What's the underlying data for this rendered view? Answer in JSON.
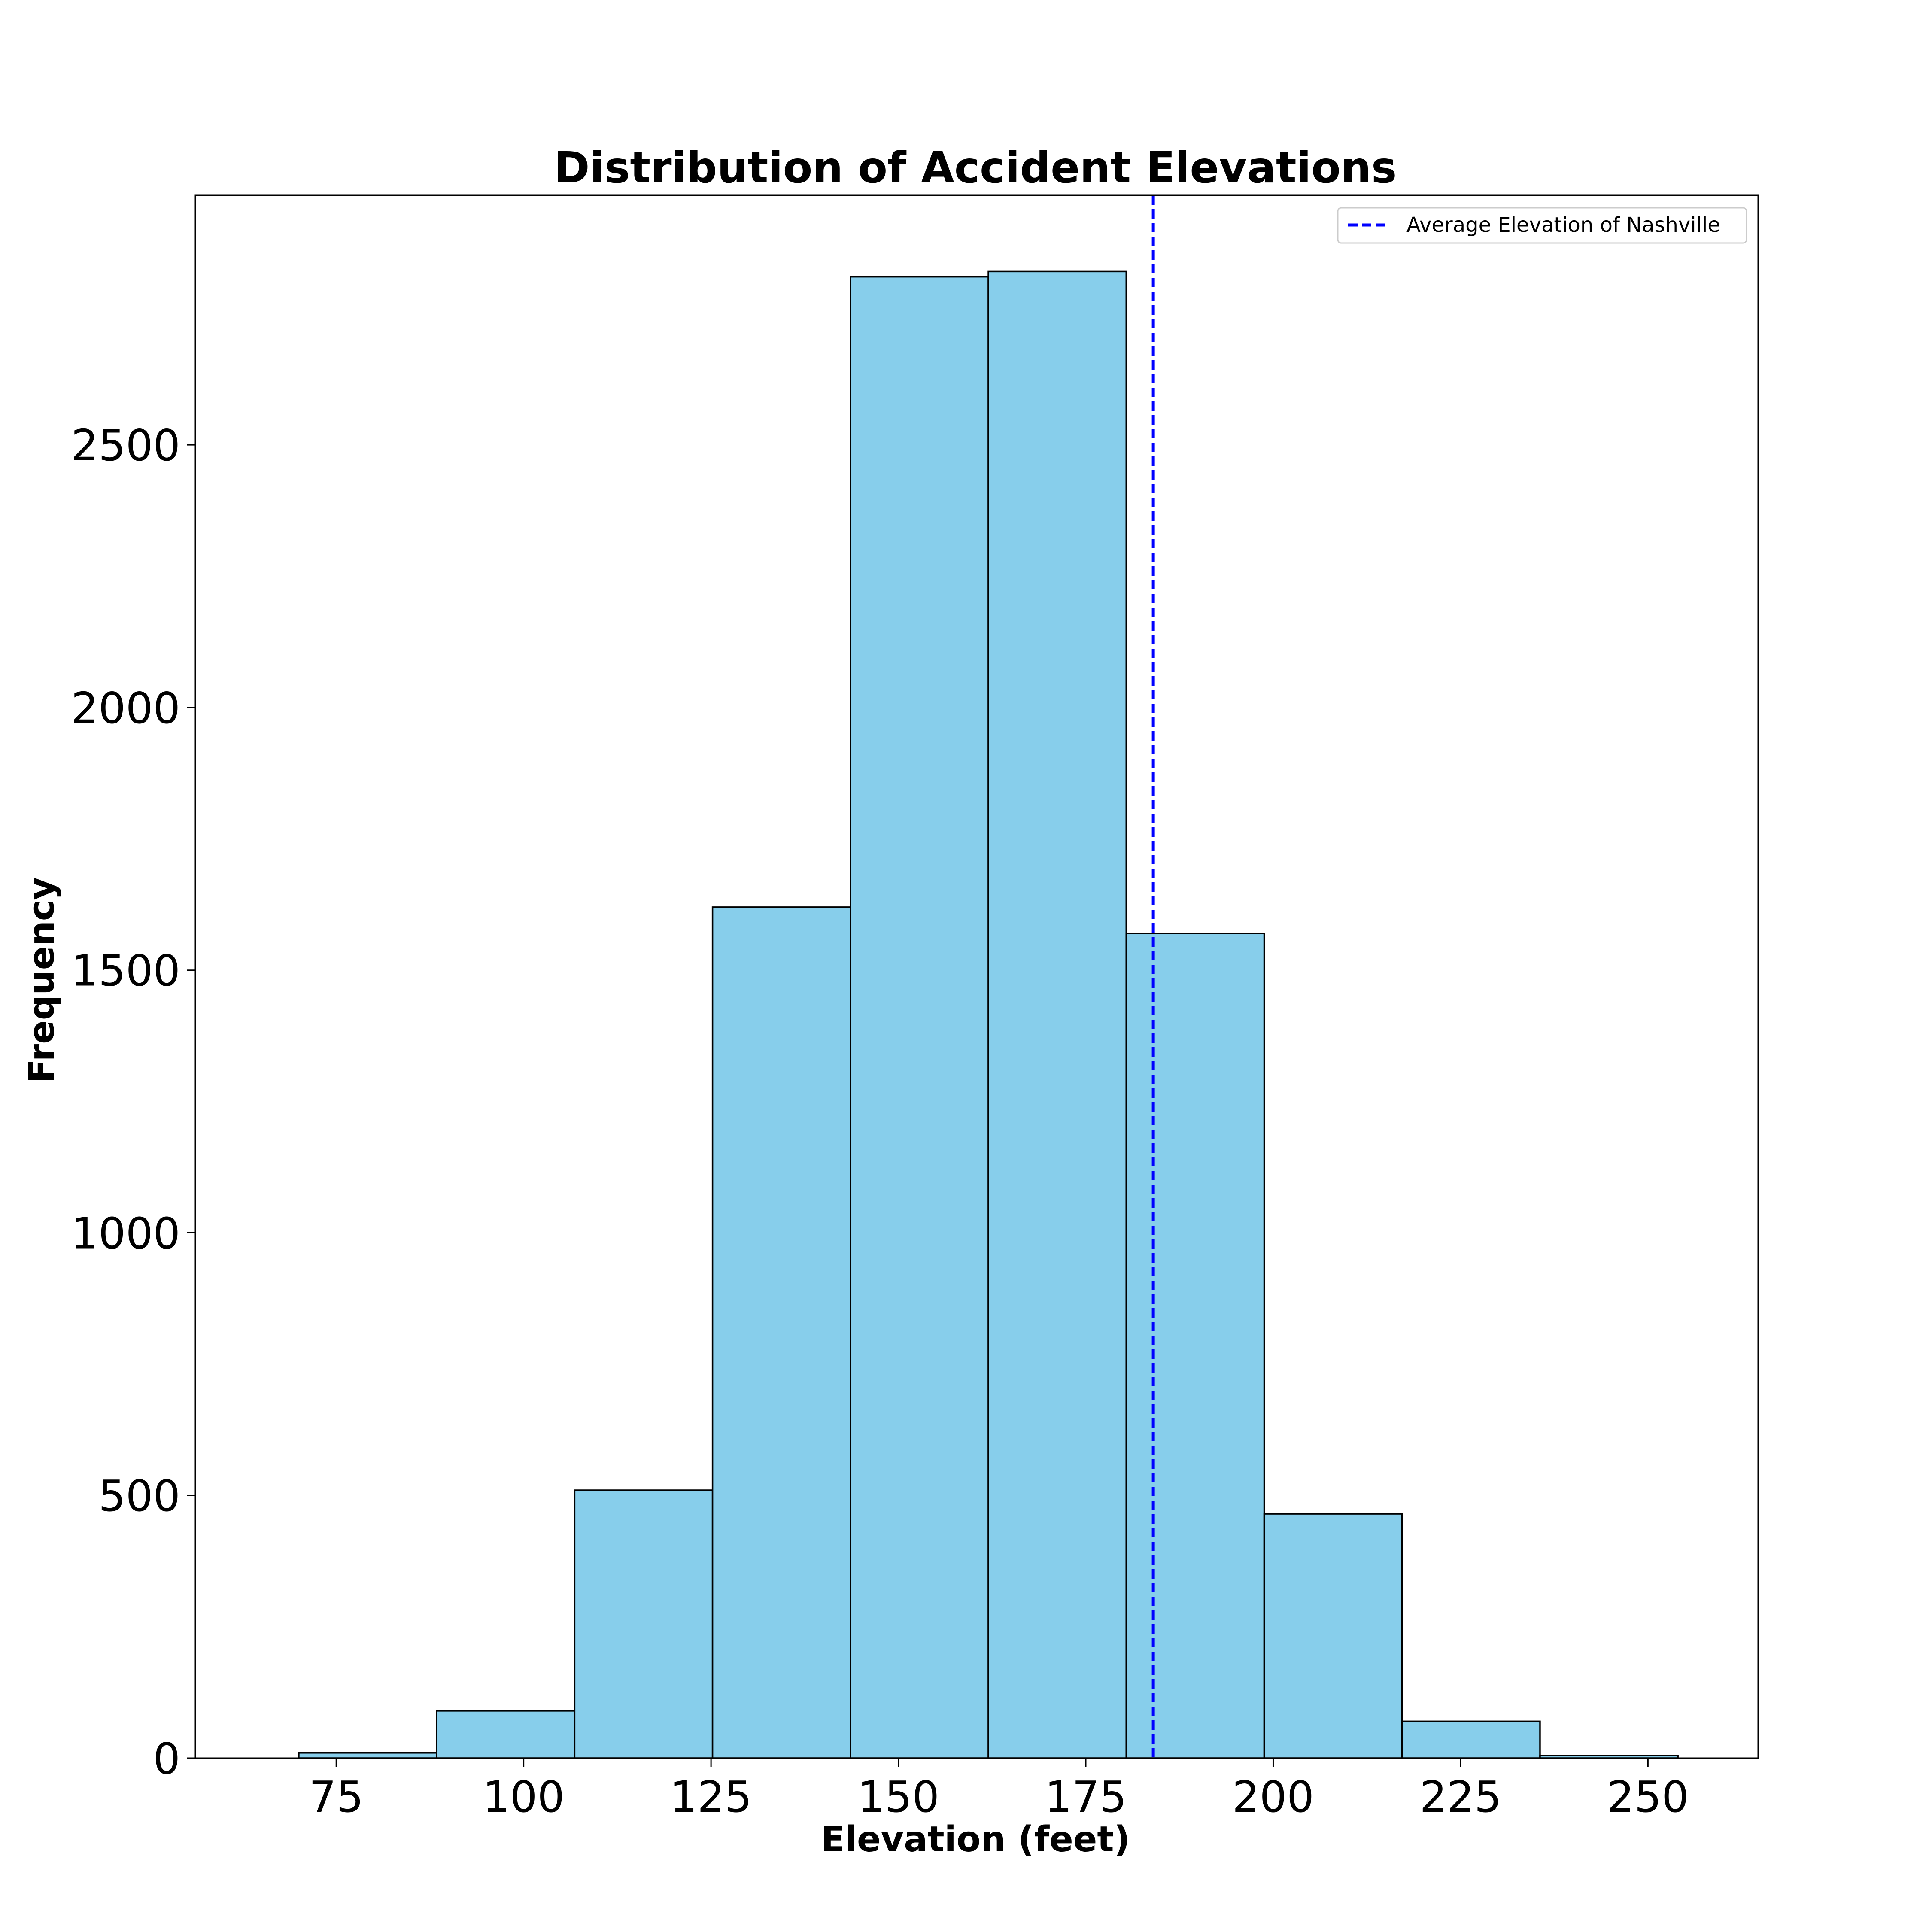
{
  "chart_data": {
    "type": "bar",
    "title": "Distribution of Accident Elevations",
    "xlabel": "Elevation (feet)",
    "ylabel": "Frequency",
    "bin_edges": [
      70.0,
      88.4,
      106.8,
      125.2,
      143.6,
      162.0,
      180.4,
      198.8,
      217.2,
      235.6,
      254.0
    ],
    "values": [
      10,
      90,
      510,
      1620,
      2820,
      2830,
      1570,
      465,
      70,
      5
    ],
    "bar_color": "#87CEEB",
    "xlim": [
      56.2,
      264.7
    ],
    "ylim": [
      0,
      2975
    ],
    "xticks": [
      75,
      100,
      125,
      150,
      175,
      200,
      225,
      250
    ],
    "yticks": [
      0,
      500,
      1000,
      1500,
      2000,
      2500
    ],
    "reference_line": {
      "x": 184.0,
      "label": "Average Elevation of Nashville",
      "color": "#0000ff",
      "style": "dashed"
    },
    "legend": {
      "position": "top-right",
      "entries": [
        "Average Elevation of Nashville"
      ]
    },
    "grid": false
  }
}
